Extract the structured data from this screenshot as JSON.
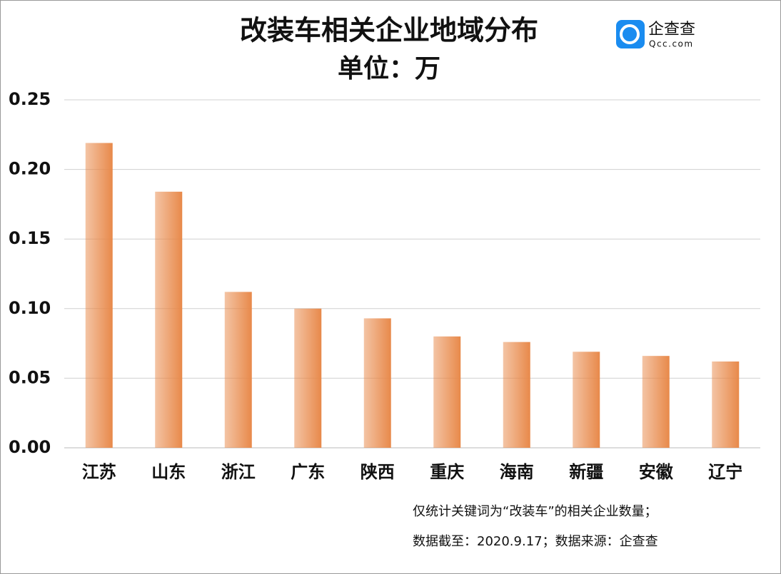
{
  "chart_data": {
    "type": "bar",
    "title": "改装车相关企业地域分布",
    "subtitle": "单位：万",
    "categories": [
      "江苏",
      "山东",
      "浙江",
      "广东",
      "陕西",
      "重庆",
      "海南",
      "新疆",
      "安徽",
      "辽宁"
    ],
    "values": [
      0.219,
      0.184,
      0.112,
      0.1,
      0.093,
      0.08,
      0.076,
      0.069,
      0.066,
      0.062
    ],
    "color": "#e8894a",
    "ylim": [
      0,
      0.25
    ],
    "yticks": [
      {
        "value": 0,
        "label": "0.00"
      },
      0.05,
      {
        "value": 0.1,
        "label": "0.10"
      },
      0.15,
      {
        "value": 0.2,
        "label": "0.20"
      },
      0.25
    ],
    "grid": true,
    "notes": [
      "仅统计关键词为“改装车”的相关企业数量；",
      "数据截至：2020.9.17；数据来源：企查查"
    ],
    "logo": {
      "name": "企查查",
      "site": "Qcc.com"
    }
  }
}
